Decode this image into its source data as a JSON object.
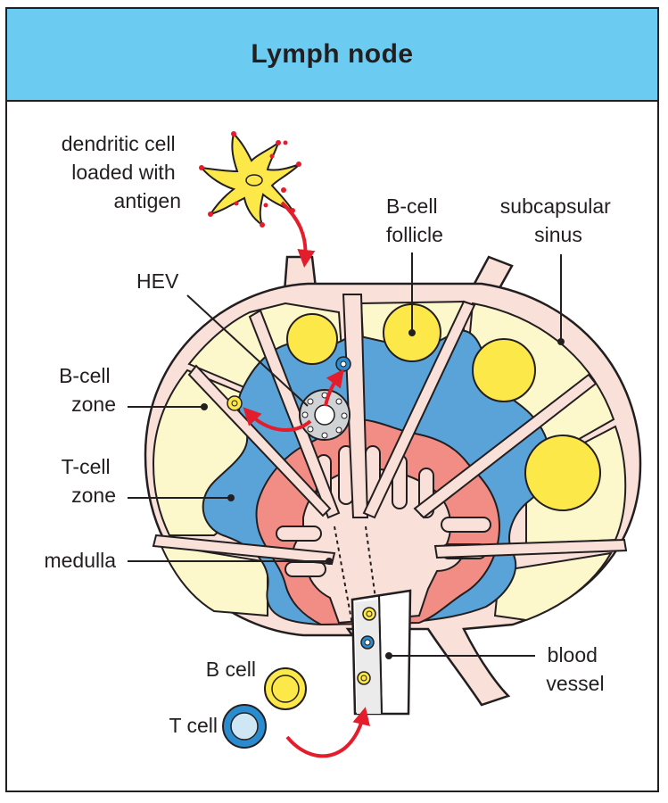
{
  "title": "Lymph node",
  "labels": {
    "dendritic_cell": [
      "dendritic cell",
      "loaded with",
      "antigen"
    ],
    "b_cell_follicle": [
      "B-cell",
      "follicle"
    ],
    "subcapsular_sinus": [
      "subcapsular",
      "sinus"
    ],
    "hev": "HEV",
    "b_cell_zone": [
      "B-cell",
      "zone"
    ],
    "t_cell_zone": [
      "T-cell",
      "zone"
    ],
    "medulla": "medulla",
    "blood_vessel": [
      "blood",
      "vessel"
    ],
    "b_cell": "B cell",
    "t_cell": "T cell"
  },
  "colors": {
    "header": "#6ccbf0",
    "capsule": "#f9e0d8",
    "cortex": "#fdf7cc",
    "follicle": "#fde84a",
    "t_zone": "#5aa3d8",
    "medulla": "#f28d86",
    "arrow": "#e31d2b",
    "outline": "#231f20"
  }
}
